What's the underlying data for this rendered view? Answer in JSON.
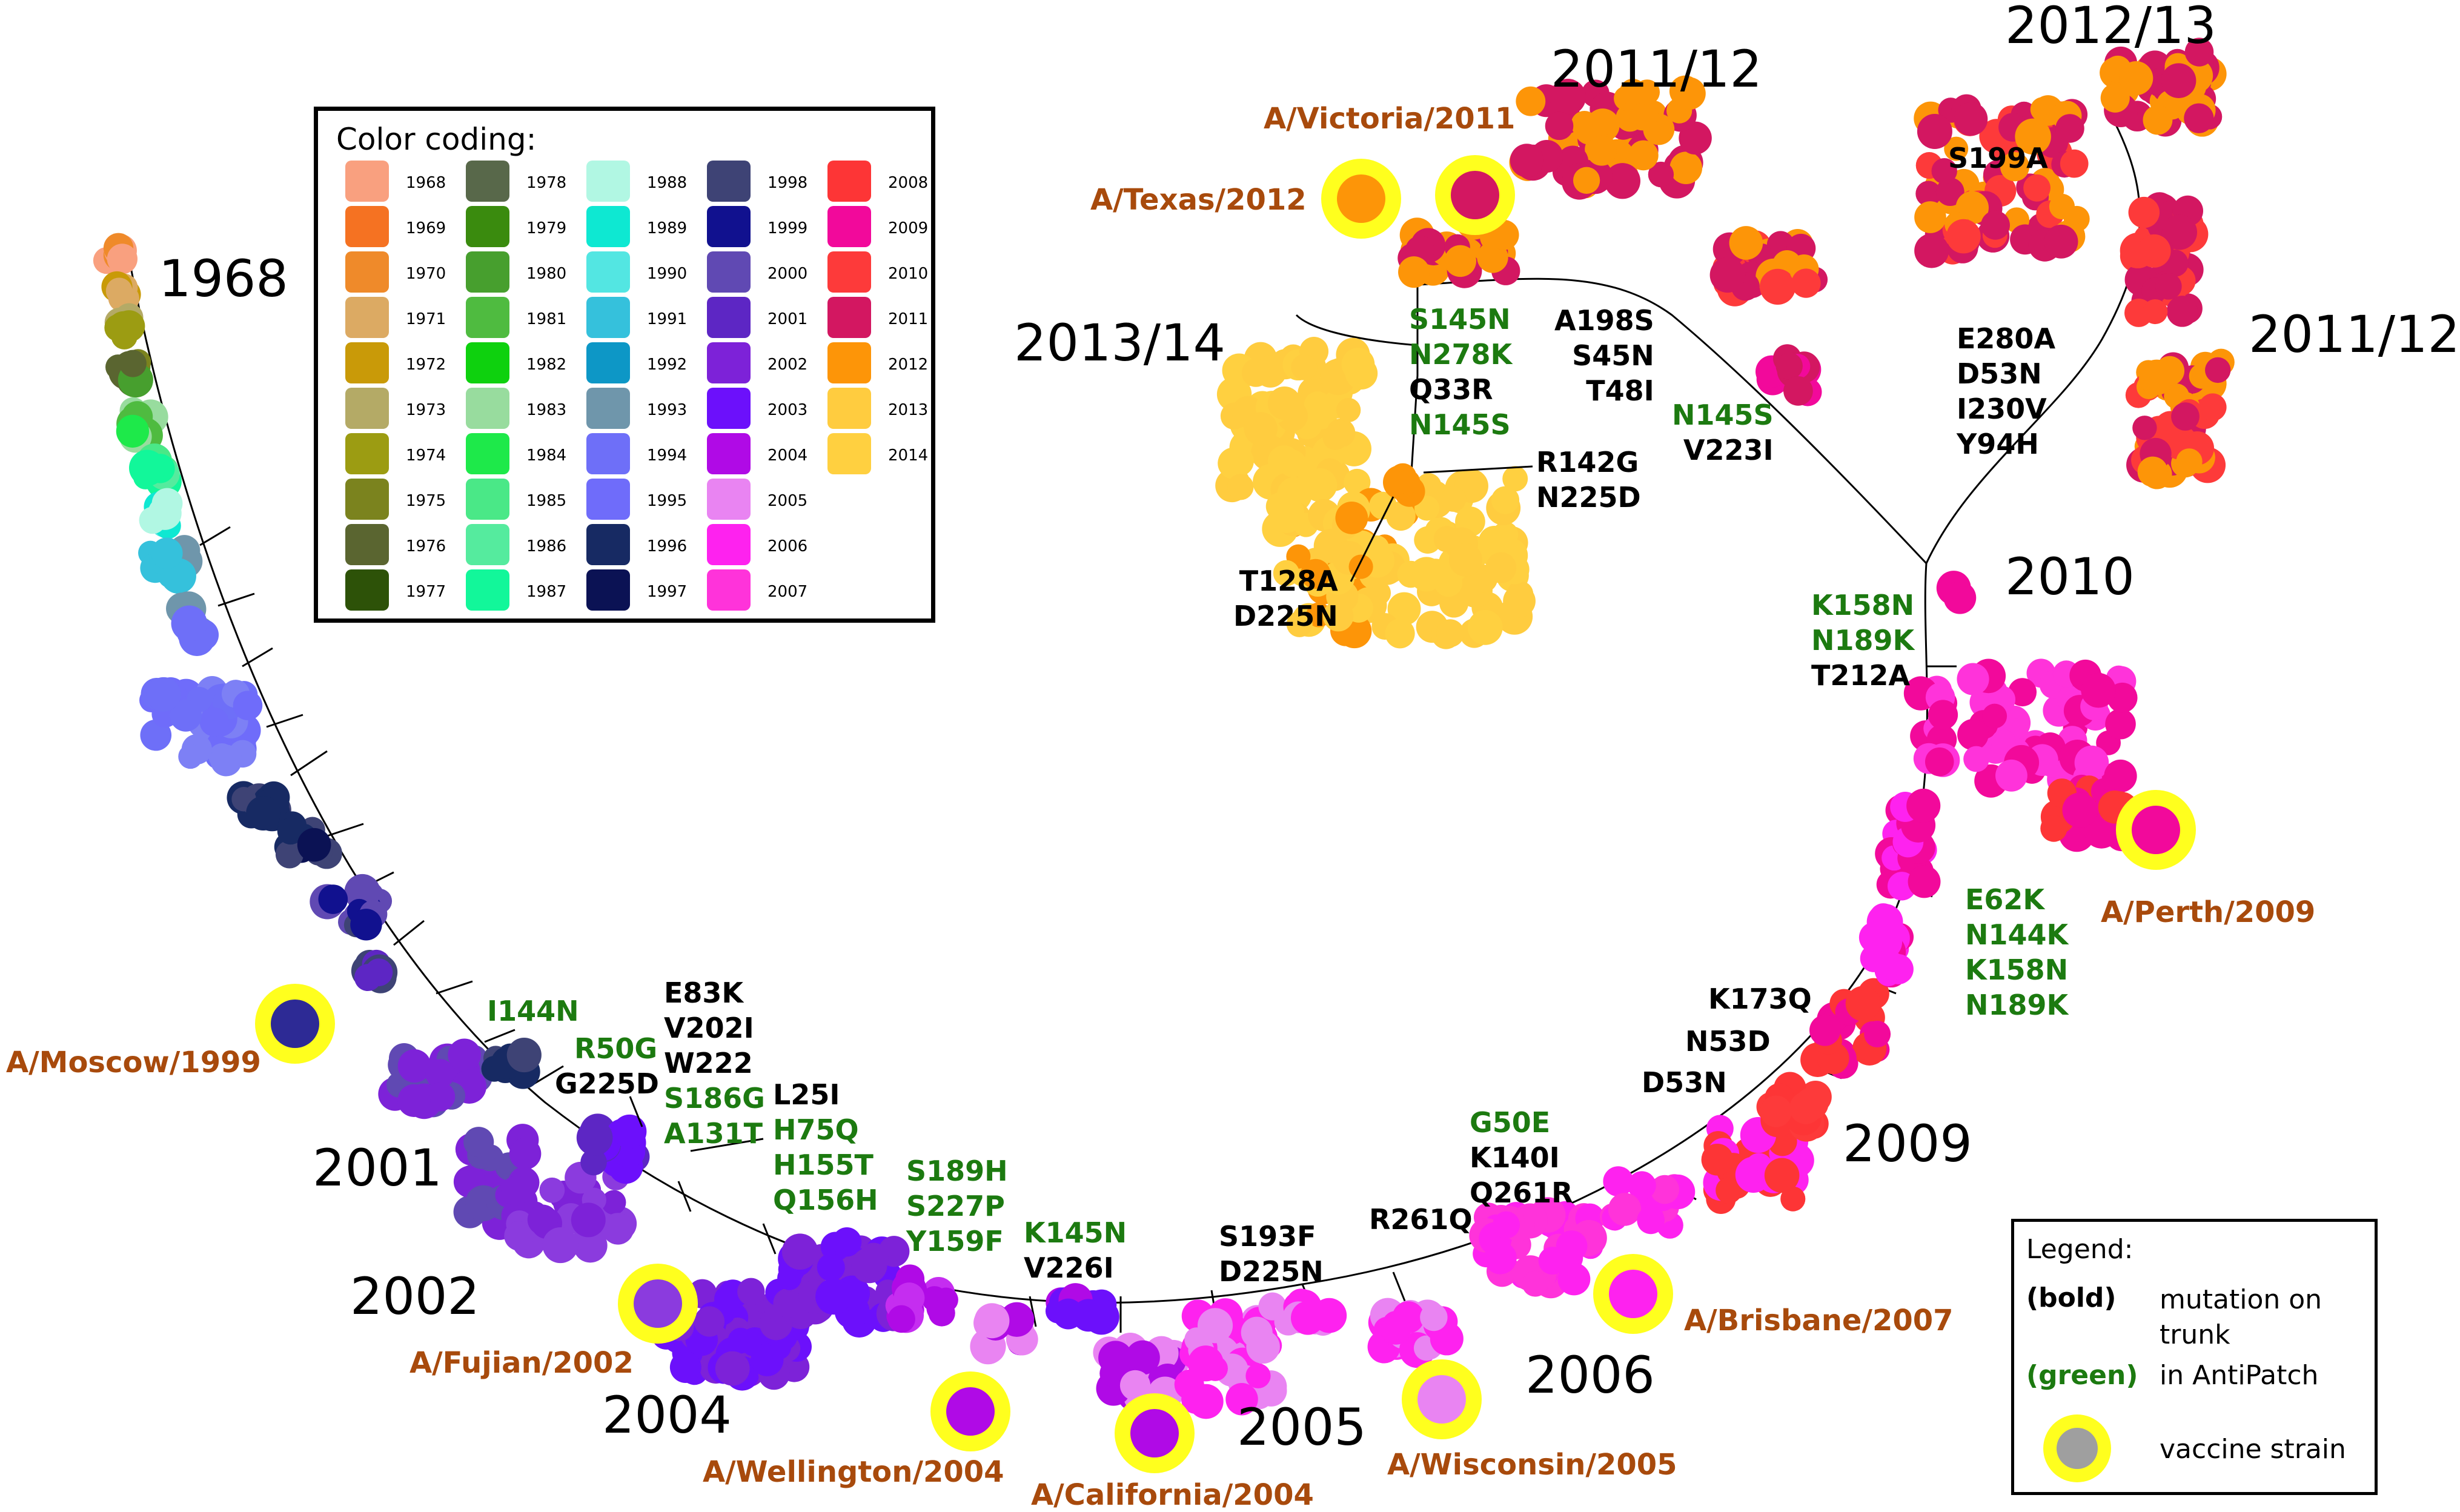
{
  "year_labels": {
    "y1968": "1968",
    "y2001": "2001",
    "y2002": "2002",
    "y2004": "2004",
    "y2005": "2005",
    "y2006": "2006",
    "y2009": "2009",
    "y2010": "2010",
    "y2011_12_top": "2011/12",
    "y2012_13": "2012/13",
    "y2011_12_right": "2011/12",
    "y2013_14": "2013/14"
  },
  "vaccine_strains": {
    "moscow": "A/Moscow/1999",
    "fujian": "A/Fujian/2002",
    "wellington": "A/Wellington/2004",
    "california": "A/California/2004",
    "wisconsin": "A/Wisconsin/2005",
    "brisbane": "A/Brisbane/2007",
    "perth": "A/Perth/2009",
    "victoria": "A/Victoria/2011",
    "texas": "A/Texas/2012"
  },
  "mutations": {
    "m_i144n": [
      "I144N"
    ],
    "m_r50g": [
      "R50G"
    ],
    "m_g225d": [
      "G225D"
    ],
    "m_e83k_black": [
      "E83K",
      "V202I",
      "W222"
    ],
    "m_e83k_green": [
      "S186G",
      "A131T"
    ],
    "m_l25i_black": [
      "L25I"
    ],
    "m_l25i_green": [
      "H75Q",
      "H155T",
      "Q156H"
    ],
    "m_s189h": [
      "S189H",
      "S227P",
      "Y159F"
    ],
    "m_k145n_green": [
      "K145N"
    ],
    "m_k145n_black": [
      "V226I"
    ],
    "m_s193f": [
      "S193F",
      "D225N"
    ],
    "m_r261q": [
      "R261Q"
    ],
    "m_g50e_green": [
      "G50E"
    ],
    "m_g50e_black": [
      "K140I",
      "Q261R"
    ],
    "m_k173q": [
      "K173Q"
    ],
    "m_n53d": [
      "N53D"
    ],
    "m_d53n": [
      "D53N"
    ],
    "m_e62k": [
      "E62K",
      "N144K",
      "K158N",
      "N189K"
    ],
    "m_k158n_green": [
      "K158N",
      "N189K"
    ],
    "m_k158n_black": [
      "T212A"
    ],
    "m_e280a": [
      "E280A",
      "D53N",
      "I230V",
      "Y94H"
    ],
    "m_s199a": [
      "S199A"
    ],
    "m_n145s_green": [
      "N145S"
    ],
    "m_n145s_black": [
      "V223I"
    ],
    "m_a198s": [
      "A198S",
      "S45N",
      "T48I"
    ],
    "m_s145n_green": [
      "S145N",
      "N278K"
    ],
    "m_s145n_black": [
      "Q33R"
    ],
    "m_s145n_green2": [
      "N145S"
    ],
    "m_r142g": [
      "R142G",
      "N225D"
    ],
    "m_t128a": [
      "T128A",
      "D225N"
    ]
  },
  "color_coding": {
    "title": "Color coding:",
    "entries": [
      {
        "year": "1968",
        "color": "#f9a07f"
      },
      {
        "year": "1969",
        "color": "#f57222"
      },
      {
        "year": "1970",
        "color": "#ef8a2a"
      },
      {
        "year": "1971",
        "color": "#dcaa63"
      },
      {
        "year": "1972",
        "color": "#c99a08"
      },
      {
        "year": "1973",
        "color": "#b4aa66"
      },
      {
        "year": "1974",
        "color": "#9c9c12"
      },
      {
        "year": "1975",
        "color": "#7b831e"
      },
      {
        "year": "1976",
        "color": "#5a6530"
      },
      {
        "year": "1977",
        "color": "#2d5208"
      },
      {
        "year": "1978",
        "color": "#58684a"
      },
      {
        "year": "1979",
        "color": "#3a8b0e"
      },
      {
        "year": "1980",
        "color": "#479f2e"
      },
      {
        "year": "1981",
        "color": "#4fbb40"
      },
      {
        "year": "1982",
        "color": "#0ed10e"
      },
      {
        "year": "1983",
        "color": "#98dc9e"
      },
      {
        "year": "1984",
        "color": "#1ee94a"
      },
      {
        "year": "1985",
        "color": "#4ae887"
      },
      {
        "year": "1986",
        "color": "#55eb9e"
      },
      {
        "year": "1987",
        "color": "#12f79a"
      },
      {
        "year": "1988",
        "color": "#b1f7e3"
      },
      {
        "year": "1989",
        "color": "#0ee8d2"
      },
      {
        "year": "1990",
        "color": "#53e6e2"
      },
      {
        "year": "1991",
        "color": "#35c1dc"
      },
      {
        "year": "1992",
        "color": "#0d97c6"
      },
      {
        "year": "1993",
        "color": "#6f96ab"
      },
      {
        "year": "1994",
        "color": "#6e6ff8"
      },
      {
        "year": "1995",
        "color": "#6f6cfa"
      },
      {
        "year": "1996",
        "color": "#172a63"
      },
      {
        "year": "1997",
        "color": "#0b1254"
      },
      {
        "year": "1998",
        "color": "#3e4375"
      },
      {
        "year": "1999",
        "color": "#11118f"
      },
      {
        "year": "2000",
        "color": "#6049b3"
      },
      {
        "year": "2001",
        "color": "#5d26c4"
      },
      {
        "year": "2002",
        "color": "#7d22d8"
      },
      {
        "year": "2003",
        "color": "#6c10fb"
      },
      {
        "year": "2004",
        "color": "#b00ae6"
      },
      {
        "year": "2005",
        "color": "#e984f2"
      },
      {
        "year": "2006",
        "color": "#fe22ef"
      },
      {
        "year": "2007",
        "color": "#ff33da"
      },
      {
        "year": "2008",
        "color": "#fd3536"
      },
      {
        "year": "2009",
        "color": "#f2099b"
      },
      {
        "year": "2010",
        "color": "#fd3a3a"
      },
      {
        "year": "2011",
        "color": "#d31761"
      },
      {
        "year": "2012",
        "color": "#fd9508"
      },
      {
        "year": "2013",
        "color": "#ffcc3f"
      },
      {
        "year": "2014",
        "color": "#ffd040"
      }
    ]
  },
  "legend": {
    "title": "Legend:",
    "bold_key": "(bold)",
    "bold_desc": "mutation on trunk",
    "green_key": "(green)",
    "green_desc": "in AntiPatch",
    "vaccine_desc": "vaccine strain"
  },
  "colors": {
    "vaccine_label": "#a84a0c",
    "antipatch_green": "#1c7a10",
    "vaccine_ring": "#ffff1e"
  }
}
